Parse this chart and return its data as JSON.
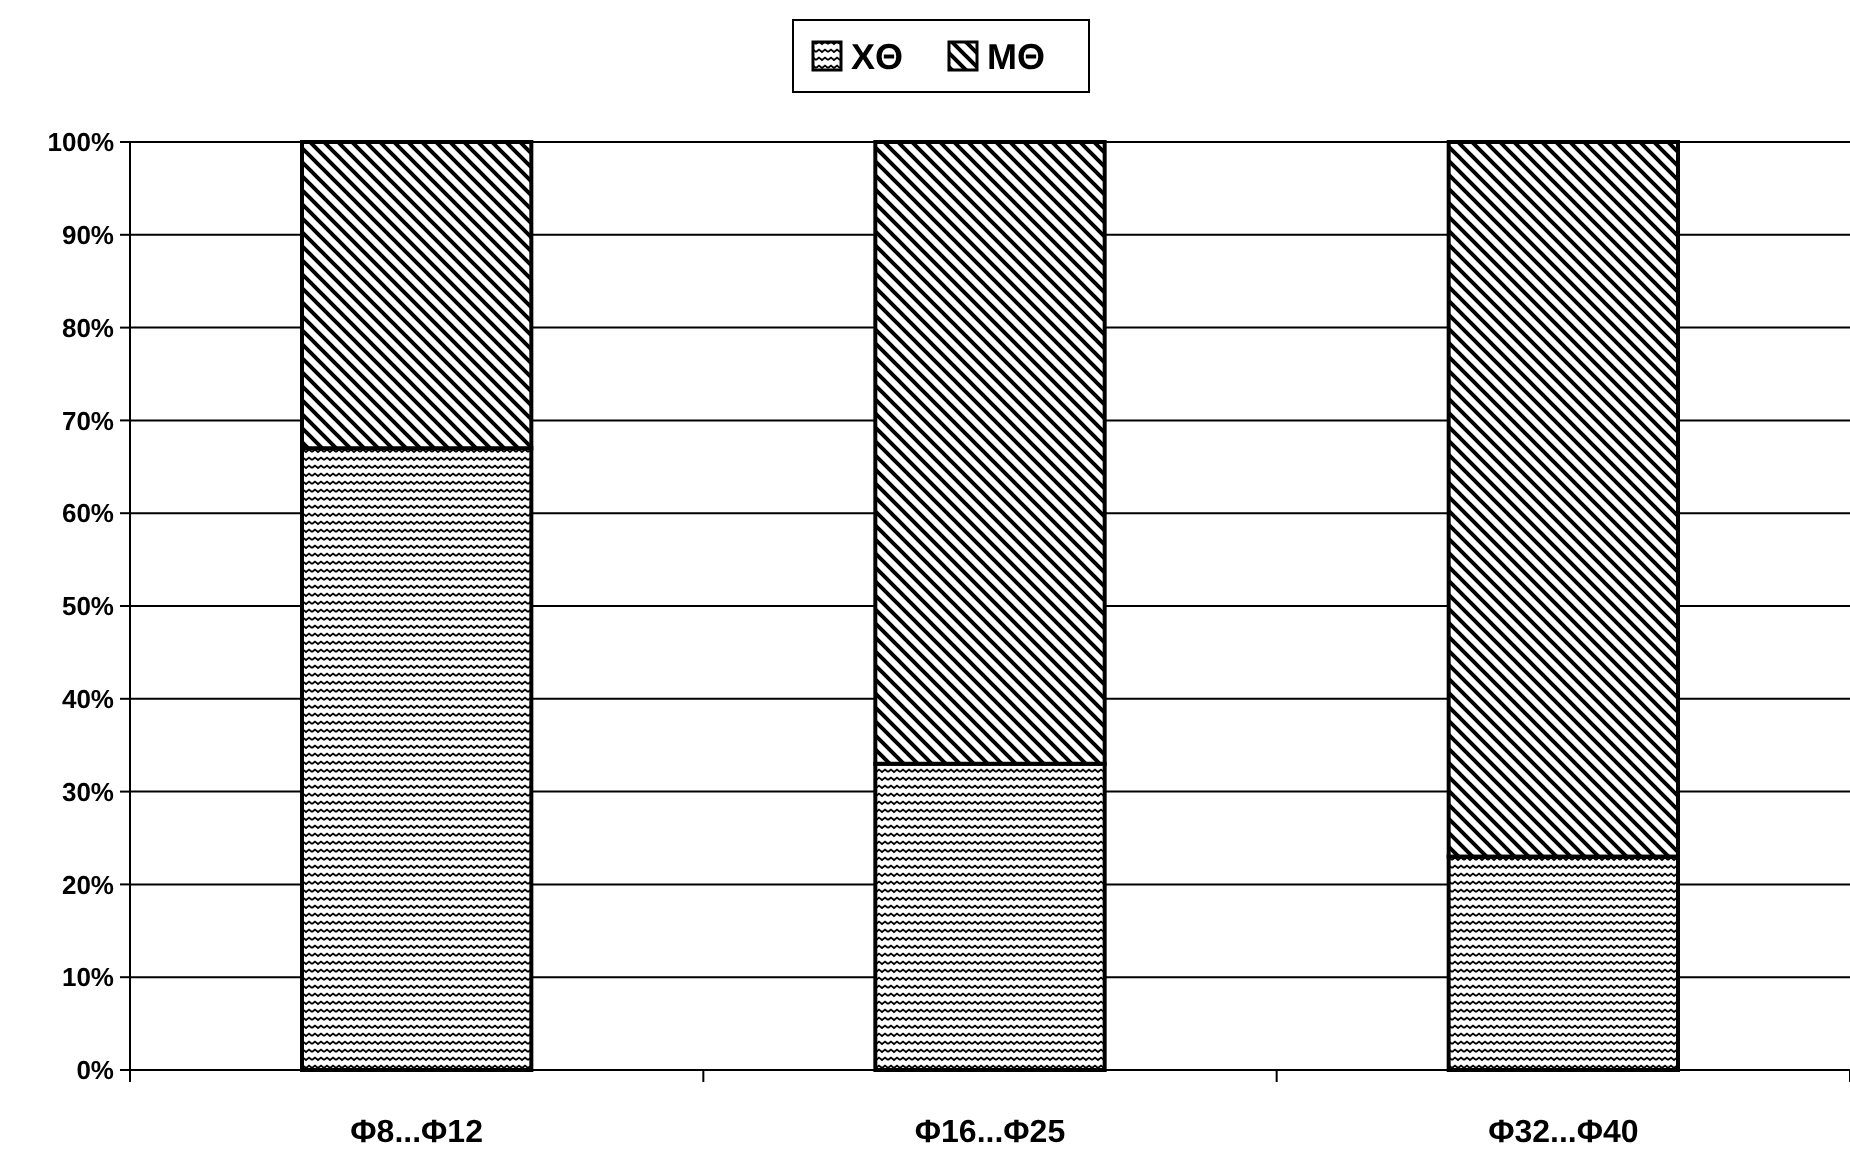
{
  "chart_data": {
    "type": "bar",
    "stacked": true,
    "categories": [
      "Φ8...Φ12",
      "Φ16...Φ25",
      "Φ32...Φ40"
    ],
    "series": [
      {
        "name": "ΧΘ",
        "color": "#000000",
        "values": [
          67,
          33,
          23
        ]
      },
      {
        "name": "ΜΘ",
        "color": "#000000",
        "values": [
          33,
          67,
          77
        ]
      }
    ],
    "ylim": [
      0,
      100
    ],
    "yticks": [
      {
        "value": 0,
        "label": "0%"
      },
      {
        "value": 10,
        "label": "10%"
      },
      {
        "value": 20,
        "label": "20%"
      },
      {
        "value": 30,
        "label": "30%"
      },
      {
        "value": 40,
        "label": "40%"
      },
      {
        "value": 50,
        "label": "50%"
      },
      {
        "value": 60,
        "label": "60%"
      },
      {
        "value": 70,
        "label": "70%"
      },
      {
        "value": 80,
        "label": "80%"
      },
      {
        "value": 90,
        "label": "90%"
      },
      {
        "value": 100,
        "label": "100%"
      }
    ],
    "grid": "y",
    "legend": "top"
  }
}
